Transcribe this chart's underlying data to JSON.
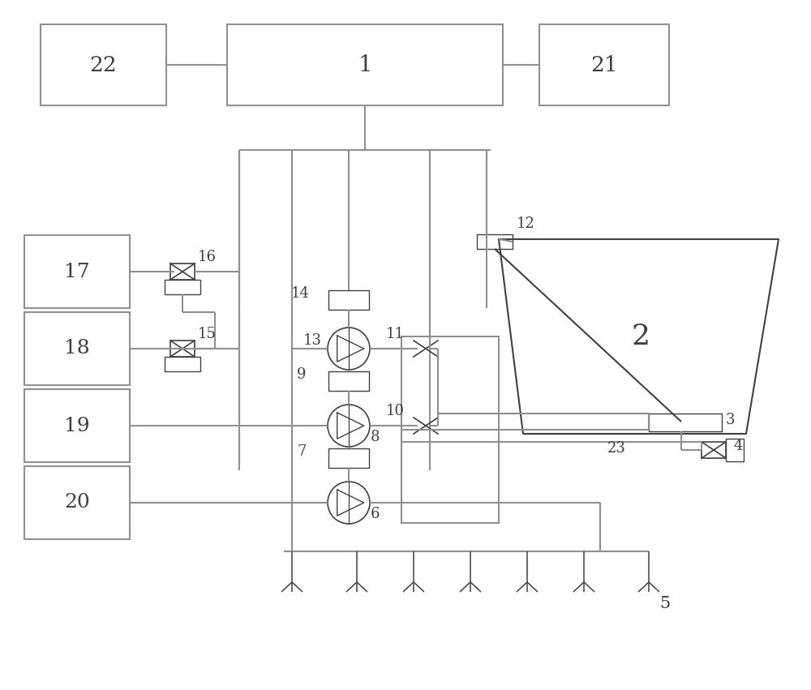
{
  "bg": "#ffffff",
  "lc": "#909090",
  "dc": "#404040",
  "lw": 1.5,
  "tlw": 1.2
}
